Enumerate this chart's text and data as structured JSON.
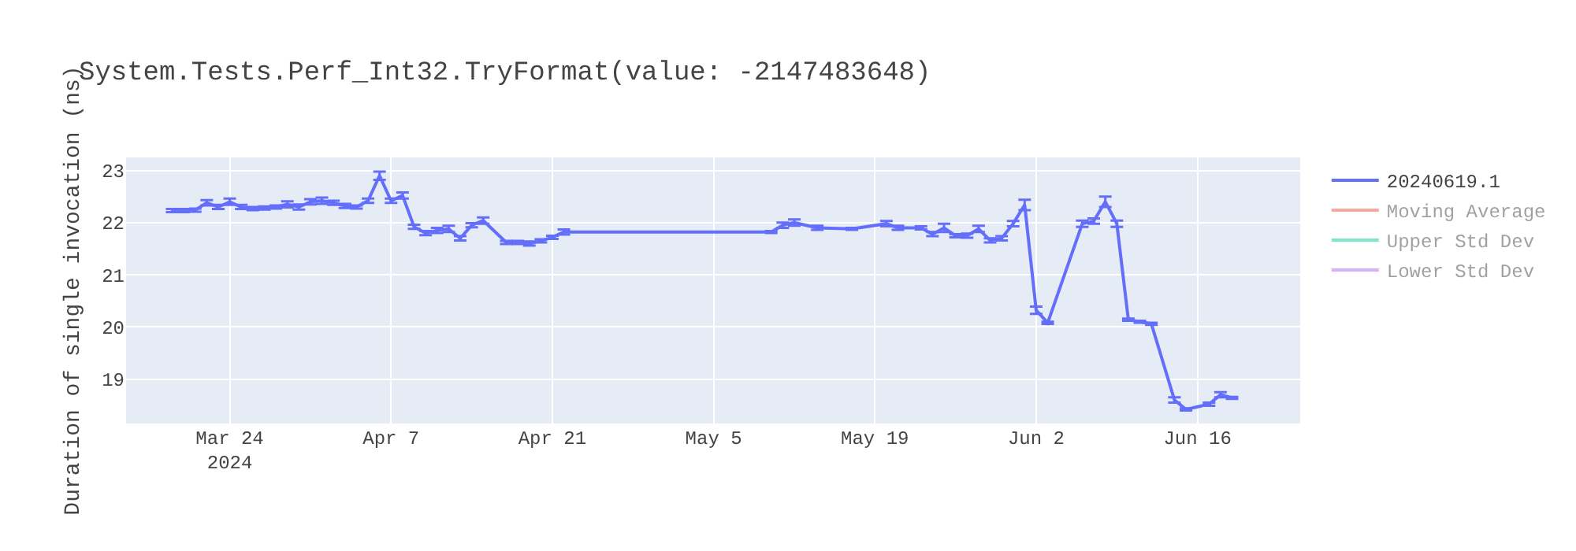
{
  "chart_data": {
    "type": "line",
    "title": "System.Tests.Perf_Int32.TryFormat(value: -2147483648)",
    "ylabel": "Duration of single invocation (ns)",
    "x": [
      "2024-03-19",
      "2024-03-20",
      "2024-03-21",
      "2024-03-22",
      "2024-03-23",
      "2024-03-24",
      "2024-03-25",
      "2024-03-26",
      "2024-03-27",
      "2024-03-28",
      "2024-03-29",
      "2024-03-30",
      "2024-03-31",
      "2024-04-01",
      "2024-04-02",
      "2024-04-03",
      "2024-04-04",
      "2024-04-05",
      "2024-04-06",
      "2024-04-07",
      "2024-04-08",
      "2024-04-09",
      "2024-04-10",
      "2024-04-11",
      "2024-04-12",
      "2024-04-13",
      "2024-04-14",
      "2024-04-15",
      "2024-04-17",
      "2024-04-18",
      "2024-04-19",
      "2024-04-20",
      "2024-04-21",
      "2024-04-22",
      "2024-05-10",
      "2024-05-11",
      "2024-05-12",
      "2024-05-14",
      "2024-05-17",
      "2024-05-20",
      "2024-05-21",
      "2024-05-23",
      "2024-05-24",
      "2024-05-25",
      "2024-05-26",
      "2024-05-27",
      "2024-05-28",
      "2024-05-29",
      "2024-05-30",
      "2024-05-31",
      "2024-06-01",
      "2024-06-02",
      "2024-06-03",
      "2024-06-06",
      "2024-06-07",
      "2024-06-08",
      "2024-06-09",
      "2024-06-10",
      "2024-06-11",
      "2024-06-12",
      "2024-06-14",
      "2024-06-15",
      "2024-06-17",
      "2024-06-18",
      "2024-06-19"
    ],
    "series": [
      {
        "name": "20240619.1",
        "color": "#636efa",
        "values": [
          22.23,
          22.23,
          22.24,
          22.38,
          22.3,
          22.4,
          22.3,
          22.27,
          22.28,
          22.3,
          22.35,
          22.3,
          22.4,
          22.42,
          22.38,
          22.32,
          22.3,
          22.42,
          22.9,
          22.42,
          22.52,
          21.92,
          21.8,
          21.85,
          21.88,
          21.7,
          21.95,
          22.04,
          21.62,
          21.62,
          21.6,
          21.65,
          21.72,
          21.82,
          21.82,
          21.95,
          22.0,
          21.9,
          21.88,
          21.98,
          21.9,
          21.9,
          21.78,
          21.9,
          21.75,
          21.75,
          21.88,
          21.66,
          21.7,
          21.98,
          22.34,
          20.32,
          20.08,
          21.98,
          22.03,
          22.4,
          21.98,
          20.14,
          20.1,
          20.06,
          18.6,
          18.42,
          18.52,
          18.7,
          18.64
        ],
        "errors": [
          0.03,
          0.03,
          0.03,
          0.05,
          0.04,
          0.06,
          0.04,
          0.03,
          0.03,
          0.03,
          0.06,
          0.05,
          0.05,
          0.06,
          0.04,
          0.04,
          0.03,
          0.04,
          0.08,
          0.04,
          0.06,
          0.04,
          0.04,
          0.05,
          0.06,
          0.04,
          0.04,
          0.06,
          0.03,
          0.03,
          0.04,
          0.03,
          0.03,
          0.05,
          0.02,
          0.05,
          0.06,
          0.04,
          0.02,
          0.05,
          0.04,
          0.03,
          0.04,
          0.08,
          0.03,
          0.04,
          0.06,
          0.04,
          0.04,
          0.05,
          0.1,
          0.07,
          0.02,
          0.06,
          0.05,
          0.1,
          0.06,
          0.02,
          0.02,
          0.02,
          0.05,
          0.02,
          0.03,
          0.05,
          0.02
        ]
      },
      {
        "name": "Moving Average",
        "color": "#ef553b",
        "values": [
          null,
          null,
          null,
          null,
          null,
          null,
          null,
          null,
          null,
          null,
          null,
          null,
          null,
          null,
          null,
          null,
          null,
          null,
          null,
          null,
          null,
          null,
          null,
          null,
          null,
          null,
          null,
          null,
          null,
          null,
          null,
          null,
          null,
          null,
          null,
          null,
          null,
          null,
          null,
          null,
          null,
          null,
          null,
          null,
          null,
          null,
          null,
          null,
          null,
          null,
          null,
          null,
          null,
          null,
          null,
          null,
          null,
          null,
          null,
          null,
          null,
          null,
          null,
          null,
          null
        ]
      },
      {
        "name": "Upper Std Dev",
        "color": "#00cc96",
        "values": [
          null,
          null,
          null,
          null,
          null,
          null,
          null,
          null,
          null,
          null,
          null,
          null,
          null,
          null,
          null,
          null,
          null,
          null,
          null,
          null,
          null,
          null,
          null,
          null,
          null,
          null,
          null,
          null,
          null,
          null,
          null,
          null,
          null,
          null,
          null,
          null,
          null,
          null,
          null,
          null,
          null,
          null,
          null,
          null,
          null,
          null,
          null,
          null,
          null,
          null,
          null,
          null,
          null,
          null,
          null,
          null,
          null,
          null,
          null,
          null,
          null,
          null,
          null,
          null,
          null
        ]
      },
      {
        "name": "Lower Std Dev",
        "color": "#ab63fa",
        "values": [
          null,
          null,
          null,
          null,
          null,
          null,
          null,
          null,
          null,
          null,
          null,
          null,
          null,
          null,
          null,
          null,
          null,
          null,
          null,
          null,
          null,
          null,
          null,
          null,
          null,
          null,
          null,
          null,
          null,
          null,
          null,
          null,
          null,
          null,
          null,
          null,
          null,
          null,
          null,
          null,
          null,
          null,
          null,
          null,
          null,
          null,
          null,
          null,
          null,
          null,
          null,
          null,
          null,
          null,
          null,
          null,
          null,
          null,
          null,
          null,
          null,
          null,
          null,
          null,
          null
        ]
      }
    ],
    "xlim": [
      "2024-03-15",
      "2024-06-24T22:00"
    ],
    "xticks": [
      {
        "value": "2024-03-24",
        "label": "Mar 24\n2024"
      },
      {
        "value": "2024-04-07",
        "label": "Apr 7"
      },
      {
        "value": "2024-04-21",
        "label": "Apr 21"
      },
      {
        "value": "2024-05-05",
        "label": "May 5"
      },
      {
        "value": "2024-05-19",
        "label": "May 19"
      },
      {
        "value": "2024-06-02",
        "label": "Jun 2"
      },
      {
        "value": "2024-06-16",
        "label": "Jun 16"
      }
    ],
    "ylim": [
      18.15,
      23.25
    ],
    "yticks": [
      19,
      20,
      21,
      22,
      23
    ],
    "grid": true,
    "legend": "top right",
    "marker": "none",
    "line_style": "solid"
  }
}
